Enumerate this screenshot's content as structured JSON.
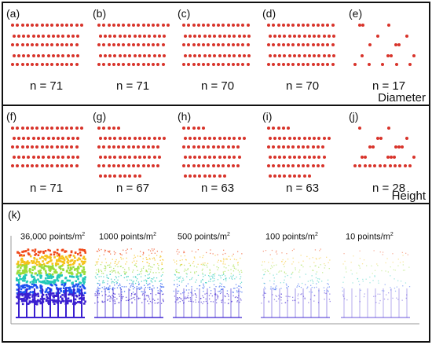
{
  "diameter_row": {
    "title": "Diameter",
    "panels": [
      {
        "label": "(a)",
        "count": "n = 71",
        "rows": [
          15,
          14,
          14,
          14,
          14
        ]
      },
      {
        "label": "(b)",
        "count": "n = 71",
        "rows": [
          15,
          14,
          14,
          14,
          14
        ]
      },
      {
        "label": "(c)",
        "count": "n = 70",
        "rows": [
          14,
          14,
          14,
          14,
          14
        ]
      },
      {
        "label": "(d)",
        "count": "n = 70",
        "rows": [
          14,
          14,
          14,
          14,
          14
        ]
      },
      {
        "label": "(e)",
        "count": "n = 17",
        "rows": [
          3,
          2,
          3,
          4,
          5
        ]
      }
    ]
  },
  "height_row": {
    "title": "Height",
    "panels": [
      {
        "label": "(f)",
        "count": "n = 71",
        "rows": [
          15,
          14,
          14,
          14,
          14
        ]
      },
      {
        "label": "(g)",
        "count": "n = 67",
        "rows": [
          5,
          14,
          13,
          13,
          13,
          9
        ]
      },
      {
        "label": "(h)",
        "count": "n = 63",
        "rows": [
          5,
          13,
          12,
          12,
          12,
          9
        ]
      },
      {
        "label": "(i)",
        "count": "n = 63",
        "rows": [
          5,
          13,
          12,
          12,
          12,
          9
        ]
      },
      {
        "label": "(j)",
        "count": "n = 28",
        "rows": [
          2,
          3,
          5,
          6,
          12
        ]
      }
    ]
  },
  "point_cloud_panel": {
    "label": "(k)",
    "densities": [
      {
        "text": "36,000 points/m",
        "sup": "2",
        "fill": 1.0
      },
      {
        "text": "1000 points/m",
        "sup": "2",
        "fill": 0.6
      },
      {
        "text": "500 points/m",
        "sup": "2",
        "fill": 0.45
      },
      {
        "text": "100 points/m",
        "sup": "2",
        "fill": 0.25
      },
      {
        "text": "10 points/m",
        "sup": "2",
        "fill": 0.1
      }
    ]
  },
  "colors": {
    "dot": "#d8332a",
    "frame": "#111111",
    "cloud_gradient": [
      "#f04a1a",
      "#f6c21a",
      "#9bdc3a",
      "#22c9b8",
      "#1a4ff0",
      "#3a1fd0"
    ]
  }
}
